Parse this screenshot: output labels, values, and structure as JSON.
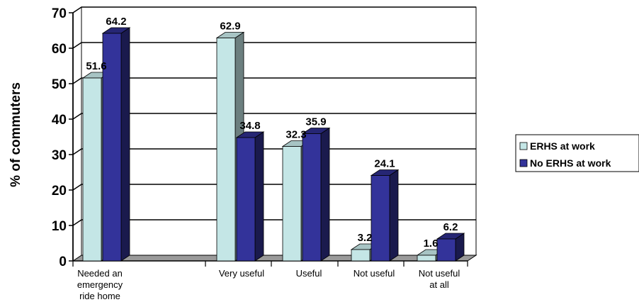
{
  "chart_data": {
    "type": "bar",
    "title": "",
    "xlabel": "",
    "ylabel": "% of commuters",
    "ylim": [
      0,
      70
    ],
    "yticks": [
      0,
      10,
      20,
      30,
      40,
      50,
      60,
      70
    ],
    "grid": true,
    "legend_position": "right",
    "categories": [
      [
        "Needed an",
        "emergency",
        "ride home"
      ],
      [
        "Very useful"
      ],
      [
        "Useful"
      ],
      [
        "Not useful"
      ],
      [
        "Not useful",
        "at all"
      ]
    ],
    "series": [
      {
        "name": "ERHS at work",
        "color": "#c4e6e6",
        "values": [
          51.6,
          62.9,
          32.3,
          3.2,
          1.6
        ]
      },
      {
        "name": "No ERHS at work",
        "color": "#33339a",
        "values": [
          64.2,
          34.8,
          35.9,
          24.1,
          6.2
        ]
      }
    ]
  }
}
